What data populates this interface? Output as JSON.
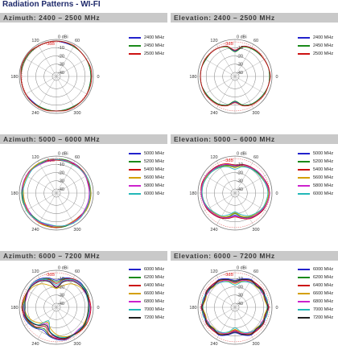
{
  "page_title": "Radiation Patterns - WI-FI",
  "colors": {
    "title": "#1f2a6b",
    "bar": "#c9c9c9",
    "ref_circle": "#e04040"
  },
  "chart_data": [
    {
      "type": "polar",
      "title": "Azimuth: 2400 – 2500 MHz",
      "rings_db": [
        0,
        -10,
        -20,
        -30,
        -40
      ],
      "ring_labels": [
        "0 dBi",
        "-10",
        "-20",
        "-30",
        "-40"
      ],
      "ref_label": "-3dB",
      "angle_labels": [
        "0",
        "60",
        "120",
        "180",
        "240",
        "300"
      ],
      "r_range_db": [
        -45,
        0
      ],
      "angle_step_deg": 15,
      "series": [
        {
          "name": "2400 MHz",
          "color": "#2222cc",
          "values": [
            -3,
            -3,
            -3,
            -3,
            -3,
            -3,
            -2,
            -2,
            -2,
            -2,
            -2,
            -2,
            -2,
            -2,
            -2,
            -3,
            -3,
            -3,
            -3,
            -3,
            -3,
            -2,
            -2,
            -3
          ]
        },
        {
          "name": "2450 MHz",
          "color": "#1a8a1a",
          "values": [
            -3,
            -3,
            -3,
            -3,
            -3,
            -2,
            -2,
            -2,
            -2,
            -2,
            -2,
            -2,
            -2,
            -2,
            -2,
            -2,
            -3,
            -3,
            -3,
            -3,
            -3,
            -2,
            -2,
            -3
          ]
        },
        {
          "name": "2500 MHz",
          "color": "#cc1111",
          "values": [
            -2,
            -2,
            -3,
            -3,
            -2,
            -2,
            -2,
            -2,
            -2,
            -1,
            -1,
            -1,
            -2,
            -2,
            -2,
            -2,
            -2,
            -2,
            -3,
            -2,
            -2,
            -2,
            -2,
            -2
          ]
        }
      ]
    },
    {
      "type": "polar",
      "title": "Elevation: 2400 – 2500 MHz",
      "rings_db": [
        0,
        -10,
        -20,
        -30,
        -40
      ],
      "ring_labels": [
        "0 dBi",
        "-10",
        "-20",
        "-30",
        "-40"
      ],
      "ref_label": "-3dB",
      "angle_labels": [
        "0",
        "60",
        "120",
        "180",
        "240",
        "300"
      ],
      "r_range_db": [
        -45,
        0
      ],
      "angle_step_deg": 15,
      "series": [
        {
          "name": "2400 MHz",
          "color": "#2222cc",
          "values": [
            -3,
            -3,
            -4,
            -5,
            -5,
            -7,
            -14,
            -7,
            -5,
            -4,
            -4,
            -3,
            -3,
            -3,
            -4,
            -4,
            -6,
            -9,
            -14,
            -9,
            -6,
            -5,
            -4,
            -3
          ]
        },
        {
          "name": "2450 MHz",
          "color": "#1a8a1a",
          "values": [
            -3,
            -3,
            -4,
            -5,
            -6,
            -8,
            -15,
            -8,
            -5,
            -4,
            -4,
            -3,
            -3,
            -3,
            -4,
            -5,
            -6,
            -9,
            -15,
            -9,
            -6,
            -5,
            -4,
            -3
          ]
        },
        {
          "name": "2500 MHz",
          "color": "#cc1111",
          "values": [
            -2,
            -3,
            -4,
            -4,
            -5,
            -7,
            -13,
            -7,
            -5,
            -4,
            -3,
            -3,
            -3,
            -3,
            -3,
            -4,
            -5,
            -8,
            -13,
            -8,
            -5,
            -4,
            -3,
            -3
          ]
        }
      ]
    },
    {
      "type": "polar",
      "title": "Azimuth: 5000 – 6000 MHz",
      "rings_db": [
        0,
        -10,
        -20,
        -30,
        -40
      ],
      "ring_labels": [
        "0 dBi",
        "-10",
        "-20",
        "-30",
        "-40"
      ],
      "ref_label": "-3dB",
      "angle_labels": [
        "0",
        "60",
        "120",
        "180",
        "240",
        "300"
      ],
      "r_range_db": [
        -45,
        0
      ],
      "angle_step_deg": 15,
      "series": [
        {
          "name": "5000 MHz",
          "color": "#2222cc",
          "values": [
            -4,
            -5,
            -4,
            -3,
            -3,
            -4,
            -5,
            -5,
            -4,
            -3,
            -3,
            -3,
            -3,
            -4,
            -5,
            -5,
            -5,
            -4,
            -4,
            -4,
            -5,
            -5,
            -4,
            -4
          ]
        },
        {
          "name": "5200 MHz",
          "color": "#1a8a1a",
          "values": [
            -3,
            -4,
            -4,
            -3,
            -3,
            -3,
            -4,
            -5,
            -4,
            -3,
            -3,
            -3,
            -3,
            -3,
            -4,
            -5,
            -5,
            -4,
            -3,
            -3,
            -4,
            -5,
            -4,
            -3
          ]
        },
        {
          "name": "5400 MHz",
          "color": "#cc1111",
          "values": [
            -4,
            -4,
            -3,
            -3,
            -4,
            -5,
            -5,
            -4,
            -3,
            -3,
            -3,
            -4,
            -4,
            -5,
            -5,
            -4,
            -4,
            -3,
            -3,
            -4,
            -5,
            -5,
            -4,
            -4
          ]
        },
        {
          "name": "5600 MHz",
          "color": "#d4a000",
          "values": [
            -3,
            -3,
            -4,
            -4,
            -5,
            -4,
            -4,
            -3,
            -3,
            -3,
            -4,
            -4,
            -5,
            -5,
            -4,
            -4,
            -3,
            -3,
            -4,
            -4,
            -5,
            -4,
            -3,
            -3
          ]
        },
        {
          "name": "5800 MHz",
          "color": "#cc22cc",
          "values": [
            -5,
            -5,
            -4,
            -4,
            -3,
            -4,
            -4,
            -5,
            -5,
            -4,
            -3,
            -3,
            -4,
            -4,
            -5,
            -4,
            -4,
            -5,
            -5,
            -4,
            -4,
            -4,
            -5,
            -5
          ]
        },
        {
          "name": "6000 MHz",
          "color": "#22b8b8",
          "values": [
            -4,
            -3,
            -3,
            -4,
            -5,
            -5,
            -4,
            -3,
            -4,
            -4,
            -5,
            -5,
            -4,
            -4,
            -3,
            -4,
            -5,
            -6,
            -5,
            -4,
            -3,
            -3,
            -4,
            -4
          ]
        }
      ]
    },
    {
      "type": "polar",
      "title": "Elevation: 5000 – 6000 MHz",
      "rings_db": [
        0,
        -10,
        -20,
        -30,
        -40
      ],
      "ring_labels": [
        "0 dBi",
        "-10",
        "-20",
        "-30",
        "-40"
      ],
      "ref_label": "-3dB",
      "angle_labels": [
        "0",
        "60",
        "120",
        "180",
        "240",
        "300"
      ],
      "r_range_db": [
        -45,
        0
      ],
      "angle_step_deg": 15,
      "series": [
        {
          "name": "5000 MHz",
          "color": "#2222cc",
          "values": [
            -3,
            -5,
            -7,
            -8,
            -8,
            -9,
            -12,
            -9,
            -7,
            -5,
            -4,
            -4,
            -4,
            -5,
            -6,
            -8,
            -10,
            -14,
            -18,
            -14,
            -10,
            -7,
            -5,
            -4
          ]
        },
        {
          "name": "5200 MHz",
          "color": "#1a8a1a",
          "values": [
            -4,
            -5,
            -6,
            -8,
            -9,
            -10,
            -13,
            -10,
            -8,
            -6,
            -5,
            -4,
            -4,
            -5,
            -7,
            -9,
            -11,
            -15,
            -20,
            -15,
            -11,
            -8,
            -6,
            -5
          ]
        },
        {
          "name": "5400 MHz",
          "color": "#cc1111",
          "values": [
            -3,
            -4,
            -6,
            -7,
            -8,
            -9,
            -11,
            -8,
            -6,
            -5,
            -4,
            -3,
            -4,
            -5,
            -6,
            -8,
            -10,
            -13,
            -16,
            -13,
            -9,
            -7,
            -5,
            -4
          ]
        },
        {
          "name": "5600 MHz",
          "color": "#d4a000",
          "values": [
            -4,
            -6,
            -7,
            -9,
            -10,
            -11,
            -14,
            -11,
            -9,
            -7,
            -5,
            -5,
            -5,
            -6,
            -8,
            -10,
            -12,
            -16,
            -21,
            -16,
            -12,
            -9,
            -7,
            -5
          ]
        },
        {
          "name": "5800 MHz",
          "color": "#cc22cc",
          "values": [
            -3,
            -5,
            -6,
            -7,
            -9,
            -10,
            -12,
            -9,
            -7,
            -6,
            -4,
            -4,
            -4,
            -5,
            -7,
            -9,
            -11,
            -14,
            -17,
            -14,
            -10,
            -8,
            -6,
            -4
          ]
        },
        {
          "name": "6000 MHz",
          "color": "#22b8b8",
          "values": [
            -5,
            -6,
            -8,
            -9,
            -10,
            -12,
            -16,
            -12,
            -9,
            -7,
            -6,
            -5,
            -5,
            -6,
            -8,
            -11,
            -13,
            -18,
            -22,
            -18,
            -13,
            -10,
            -7,
            -6
          ]
        }
      ]
    },
    {
      "type": "polar",
      "title": "Azimuth: 6000 – 7200 MHz",
      "rings_db": [
        0,
        -10,
        -20,
        -30,
        -40
      ],
      "ring_labels": [
        "0 dBi",
        "-10",
        "-20",
        "-30",
        "-40"
      ],
      "ref_label": "-3dB",
      "angle_labels": [
        "0",
        "60",
        "120",
        "180",
        "240",
        "300"
      ],
      "r_range_db": [
        -45,
        0
      ],
      "angle_step_deg": 15,
      "series": [
        {
          "name": "6000 MHz",
          "color": "#2222cc",
          "values": [
            -4,
            -5,
            -4,
            -3,
            -5,
            -8,
            -12,
            -8,
            -5,
            -4,
            -5,
            -6,
            -5,
            -4,
            -6,
            -9,
            -13,
            -9,
            -6,
            -4,
            -5,
            -6,
            -5,
            -4
          ]
        },
        {
          "name": "6200 MHz",
          "color": "#1a8a1a",
          "values": [
            -5,
            -4,
            -3,
            -4,
            -6,
            -9,
            -14,
            -9,
            -6,
            -5,
            -6,
            -5,
            -4,
            -5,
            -7,
            -10,
            -15,
            -10,
            -7,
            -5,
            -6,
            -5,
            -4,
            -5
          ]
        },
        {
          "name": "6400 MHz",
          "color": "#cc1111",
          "values": [
            -3,
            -4,
            -5,
            -4,
            -5,
            -10,
            -16,
            -10,
            -7,
            -5,
            -5,
            -4,
            -3,
            -5,
            -8,
            -11,
            -18,
            -11,
            -7,
            -5,
            -5,
            -4,
            -3,
            -3
          ]
        },
        {
          "name": "6600 MHz",
          "color": "#d4a000",
          "values": [
            -6,
            -5,
            -6,
            -8,
            -12,
            -18,
            -22,
            -18,
            -12,
            -8,
            -6,
            -5,
            -6,
            -8,
            -12,
            -18,
            -24,
            -18,
            -12,
            -8,
            -6,
            -5,
            -6,
            -6
          ]
        },
        {
          "name": "6800 MHz",
          "color": "#cc22cc",
          "values": [
            -4,
            -5,
            -6,
            -5,
            -7,
            -12,
            -20,
            -12,
            -7,
            -5,
            -6,
            -7,
            -5,
            -6,
            -9,
            -14,
            -22,
            -14,
            -8,
            -6,
            -6,
            -7,
            -5,
            -4
          ]
        },
        {
          "name": "7000 MHz",
          "color": "#22b8b8",
          "values": [
            -5,
            -6,
            -5,
            -4,
            -6,
            -11,
            -18,
            -11,
            -6,
            -4,
            -5,
            -6,
            -6,
            -7,
            -10,
            -15,
            -26,
            -15,
            -10,
            -7,
            -5,
            -6,
            -5,
            -5
          ]
        },
        {
          "name": "7200 MHz",
          "color": "#222222",
          "values": [
            -6,
            -5,
            -5,
            -6,
            -8,
            -13,
            -21,
            -13,
            -8,
            -6,
            -5,
            -6,
            -7,
            -6,
            -9,
            -14,
            -20,
            -14,
            -9,
            -6,
            -6,
            -5,
            -5,
            -6
          ]
        }
      ]
    },
    {
      "type": "polar",
      "title": "Elevation: 6000 – 7200 MHz",
      "rings_db": [
        0,
        -10,
        -20,
        -30,
        -40
      ],
      "ring_labels": [
        "0 dBi",
        "-10",
        "-20",
        "-30",
        "-40"
      ],
      "ref_label": "-3dB",
      "angle_labels": [
        "0",
        "60",
        "120",
        "180",
        "240",
        "300"
      ],
      "r_range_db": [
        -45,
        0
      ],
      "angle_step_deg": 15,
      "series": [
        {
          "name": "6000 MHz",
          "color": "#2222cc",
          "values": [
            -4,
            -6,
            -5,
            -7,
            -6,
            -9,
            -12,
            -9,
            -6,
            -7,
            -5,
            -6,
            -4,
            -6,
            -5,
            -7,
            -6,
            -10,
            -14,
            -10,
            -6,
            -7,
            -5,
            -6
          ]
        },
        {
          "name": "6200 MHz",
          "color": "#1a8a1a",
          "values": [
            -5,
            -5,
            -7,
            -6,
            -8,
            -10,
            -14,
            -10,
            -8,
            -6,
            -7,
            -5,
            -5,
            -5,
            -7,
            -6,
            -8,
            -11,
            -15,
            -11,
            -8,
            -6,
            -7,
            -5
          ]
        },
        {
          "name": "6400 MHz",
          "color": "#cc1111",
          "values": [
            -4,
            -7,
            -5,
            -6,
            -7,
            -11,
            -15,
            -11,
            -7,
            -6,
            -5,
            -7,
            -4,
            -7,
            -5,
            -6,
            -7,
            -12,
            -17,
            -12,
            -7,
            -6,
            -5,
            -7
          ]
        },
        {
          "name": "6600 MHz",
          "color": "#d4a000",
          "values": [
            -6,
            -8,
            -7,
            -9,
            -8,
            -12,
            -16,
            -12,
            -8,
            -9,
            -7,
            -8,
            -6,
            -8,
            -7,
            -9,
            -8,
            -13,
            -18,
            -13,
            -8,
            -9,
            -7,
            -8
          ]
        },
        {
          "name": "6800 MHz",
          "color": "#cc22cc",
          "values": [
            -5,
            -6,
            -8,
            -7,
            -9,
            -11,
            -15,
            -11,
            -9,
            -7,
            -8,
            -6,
            -5,
            -6,
            -8,
            -7,
            -9,
            -12,
            -16,
            -12,
            -9,
            -7,
            -8,
            -6
          ]
        },
        {
          "name": "7000 MHz",
          "color": "#22b8b8",
          "values": [
            -6,
            -5,
            -7,
            -8,
            -10,
            -13,
            -18,
            -13,
            -10,
            -8,
            -7,
            -5,
            -6,
            -5,
            -7,
            -8,
            -10,
            -14,
            -20,
            -14,
            -10,
            -8,
            -7,
            -5
          ]
        },
        {
          "name": "7200 MHz",
          "color": "#222222",
          "values": [
            -5,
            -7,
            -6,
            -8,
            -7,
            -10,
            -13,
            -10,
            -7,
            -8,
            -6,
            -7,
            -5,
            -7,
            -6,
            -8,
            -7,
            -11,
            -15,
            -11,
            -7,
            -8,
            -6,
            -7
          ]
        }
      ]
    }
  ]
}
